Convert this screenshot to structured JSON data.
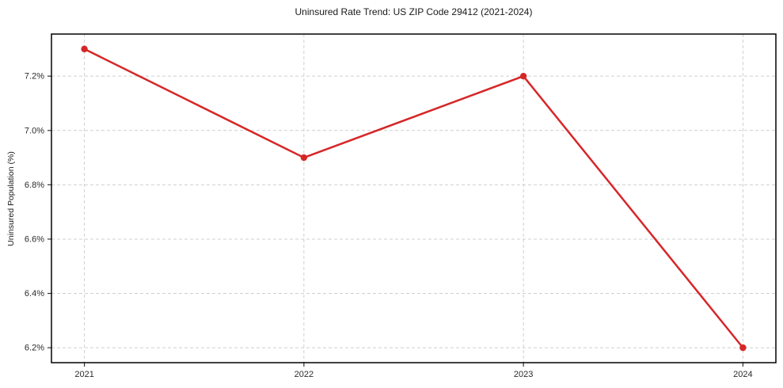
{
  "chart_data": {
    "type": "line",
    "title": "Uninsured Rate Trend: US ZIP Code 29412 (2021-2024)",
    "xlabel": "",
    "ylabel": "Uninsured Population (%)",
    "x": [
      2021,
      2022,
      2023,
      2024
    ],
    "values": [
      7.3,
      6.9,
      7.2,
      6.2
    ],
    "xticks": [
      2021,
      2022,
      2023,
      2024
    ],
    "xtick_labels": [
      "2021",
      "2022",
      "2023",
      "2024"
    ],
    "yticks": [
      6.2,
      6.4,
      6.6,
      6.8,
      7.0,
      7.2
    ],
    "ytick_labels": [
      "6.2%",
      "6.4%",
      "6.6%",
      "6.8%",
      "7.0%",
      "7.2%"
    ],
    "xlim": [
      2020.85,
      2024.15
    ],
    "ylim": [
      6.145,
      7.355
    ],
    "grid": true,
    "grid_style": "dashed",
    "legend": false,
    "line_color": "#d62728",
    "grid_color": "#cfcfcf",
    "spine_color": "#000000",
    "tick_color": "#333333",
    "background": "#ffffff"
  }
}
